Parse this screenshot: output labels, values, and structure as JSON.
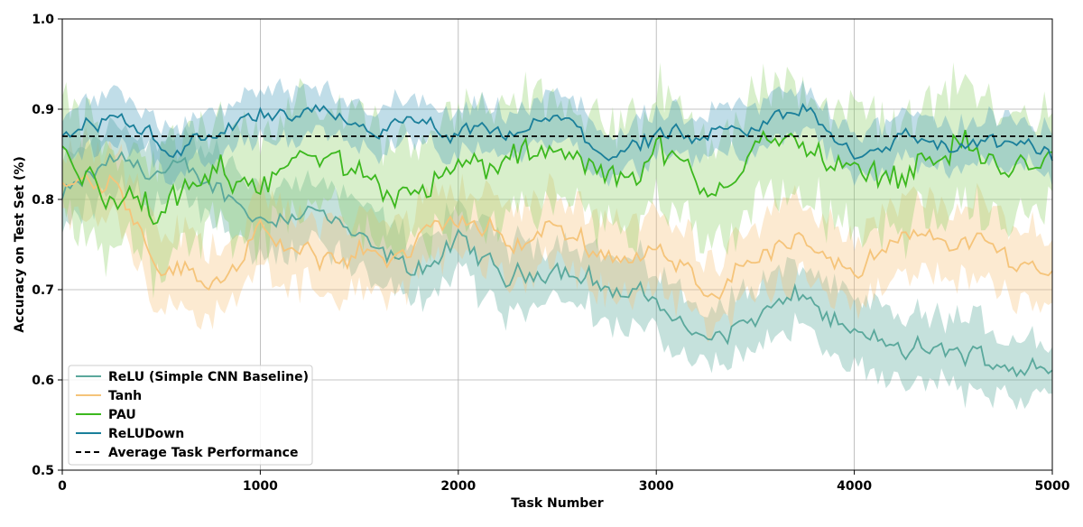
{
  "chart_data": {
    "type": "line",
    "title": "",
    "xlabel": "Task Number",
    "ylabel": "Accuracy on Test Set (%)",
    "xlim": [
      0,
      5000
    ],
    "ylim": [
      0.5,
      1.0
    ],
    "grid": true,
    "legend_position": "bottom-left",
    "x_ticks": [
      0,
      1000,
      2000,
      3000,
      4000,
      5000
    ],
    "x_tick_labels": [
      "0",
      "1000",
      "2000",
      "3000",
      "4000",
      "5000"
    ],
    "y_ticks": [
      0.5,
      0.6,
      0.7,
      0.8,
      0.9,
      1.0
    ],
    "y_tick_labels": [
      "0.5",
      "0.6",
      "0.7",
      "0.8",
      "0.9",
      "1.0"
    ],
    "series": [
      {
        "name": "ReLU (Simple CNN Baseline)",
        "color": "#5aa89c",
        "band_color": "#5aa89c",
        "x": [
          0,
          250,
          500,
          750,
          1000,
          1250,
          1500,
          1750,
          2000,
          2250,
          2500,
          2750,
          3000,
          3250,
          3500,
          3750,
          4000,
          4250,
          4500,
          4750,
          5000
        ],
        "values": [
          0.8,
          0.84,
          0.83,
          0.82,
          0.78,
          0.79,
          0.75,
          0.72,
          0.75,
          0.71,
          0.73,
          0.7,
          0.69,
          0.64,
          0.67,
          0.69,
          0.65,
          0.63,
          0.63,
          0.62,
          0.61
        ],
        "band": 0.035
      },
      {
        "name": "Tanh",
        "color": "#f5c47a",
        "band_color": "#f5c47a",
        "x": [
          0,
          250,
          500,
          750,
          1000,
          1250,
          1500,
          1750,
          2000,
          2250,
          2500,
          2750,
          3000,
          3250,
          3500,
          3750,
          4000,
          4250,
          4500,
          4750,
          5000
        ],
        "values": [
          0.81,
          0.83,
          0.73,
          0.71,
          0.76,
          0.73,
          0.74,
          0.74,
          0.78,
          0.75,
          0.77,
          0.74,
          0.74,
          0.7,
          0.74,
          0.75,
          0.73,
          0.75,
          0.76,
          0.74,
          0.72
        ],
        "band": 0.04
      },
      {
        "name": "PAU",
        "color": "#3cb81e",
        "band_color": "#8ed16a",
        "x": [
          0,
          250,
          500,
          750,
          1000,
          1250,
          1500,
          1750,
          2000,
          2250,
          2500,
          2750,
          3000,
          3250,
          3500,
          3750,
          4000,
          4250,
          4500,
          4750,
          5000
        ],
        "values": [
          0.85,
          0.81,
          0.78,
          0.82,
          0.83,
          0.84,
          0.82,
          0.82,
          0.83,
          0.84,
          0.85,
          0.82,
          0.86,
          0.8,
          0.86,
          0.86,
          0.83,
          0.83,
          0.87,
          0.83,
          0.84
        ],
        "band": 0.06
      },
      {
        "name": "ReLUDown",
        "color": "#1a7f9a",
        "band_color": "#4a9dbd",
        "x": [
          0,
          250,
          500,
          750,
          1000,
          1250,
          1500,
          1750,
          2000,
          2250,
          2500,
          2750,
          3000,
          3250,
          3500,
          3750,
          4000,
          4250,
          4500,
          4750,
          5000
        ],
        "values": [
          0.87,
          0.89,
          0.86,
          0.87,
          0.89,
          0.89,
          0.88,
          0.88,
          0.87,
          0.87,
          0.89,
          0.85,
          0.87,
          0.86,
          0.88,
          0.9,
          0.85,
          0.87,
          0.86,
          0.86,
          0.85
        ],
        "band": 0.025
      }
    ],
    "reference_line": {
      "name": "Average Task Performance",
      "value": 0.87,
      "color": "#000000",
      "style": "dashed"
    }
  }
}
